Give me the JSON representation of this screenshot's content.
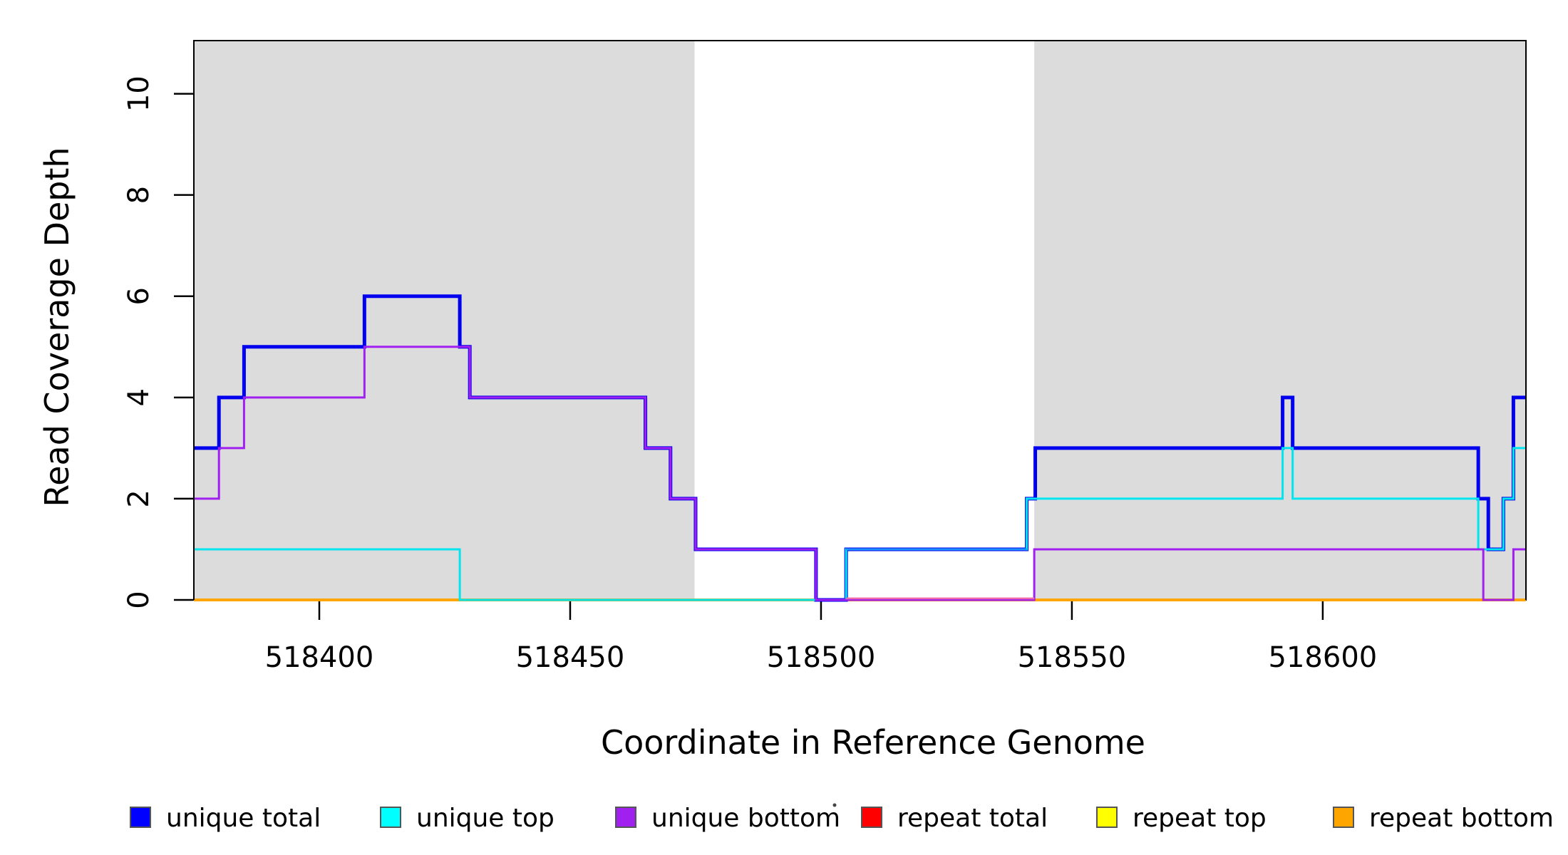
{
  "page": {
    "background": "#FFFFFF"
  },
  "chart_data": {
    "type": "line",
    "subtype": "step-coverage",
    "title": "",
    "xlabel": "Coordinate in Reference Genome",
    "ylabel": "Read Coverage Depth",
    "xlim": [
      518375,
      518640.5
    ],
    "ylim": [
      0,
      11.05
    ],
    "xticks": [
      518400,
      518450,
      518500,
      518550,
      518600
    ],
    "xtick_labels": [
      "518400",
      "518450",
      "518500",
      "518550",
      "518600"
    ],
    "yticks": [
      0,
      2,
      4,
      6,
      8,
      10
    ],
    "ytick_labels": [
      "0",
      "2",
      "4",
      "6",
      "8",
      "10"
    ],
    "grid": false,
    "legend_position": "bottom",
    "shade_color": "#DCDCDC",
    "shaded_regions": [
      {
        "start": 518375,
        "end": 518474.8
      },
      {
        "start": 518542.5,
        "end": 518640.5
      }
    ],
    "series": [
      {
        "name": "unique total",
        "color": "#0000EE",
        "line_width": 5,
        "steps": [
          [
            518375,
            3
          ],
          [
            518380,
            4
          ],
          [
            518385,
            5
          ],
          [
            518409,
            6
          ],
          [
            518428,
            5
          ],
          [
            518430,
            4
          ],
          [
            518465,
            3
          ],
          [
            518470,
            2
          ],
          [
            518475,
            1
          ],
          [
            518499,
            0
          ],
          [
            518505,
            1
          ],
          [
            518541,
            2
          ],
          [
            518542.7,
            3
          ],
          [
            518592,
            4
          ],
          [
            518594,
            3
          ],
          [
            518631,
            2
          ],
          [
            518633,
            1
          ],
          [
            518636,
            2
          ],
          [
            518638,
            4
          ]
        ]
      },
      {
        "name": "unique top",
        "color": "#00E5EE",
        "line_width": 3,
        "steps": [
          [
            518375,
            1
          ],
          [
            518428,
            0
          ],
          [
            518505,
            1
          ],
          [
            518541,
            2
          ],
          [
            518592,
            3
          ],
          [
            518594,
            2
          ],
          [
            518631,
            1
          ],
          [
            518636,
            2
          ],
          [
            518638,
            3
          ]
        ]
      },
      {
        "name": "unique bottom",
        "color": "#A020F0",
        "line_width": 3,
        "steps": [
          [
            518375,
            2
          ],
          [
            518380,
            3
          ],
          [
            518385,
            4
          ],
          [
            518409,
            5
          ],
          [
            518430,
            4
          ],
          [
            518465,
            3
          ],
          [
            518470,
            2
          ],
          [
            518475,
            1
          ],
          [
            518499,
            0
          ],
          [
            518542.5,
            1
          ],
          [
            518632,
            0
          ],
          [
            518638,
            1
          ]
        ]
      },
      {
        "name": "repeat total",
        "color": "#FF0000",
        "line_width": 2.5,
        "steps": [
          [
            518375,
            0
          ]
        ]
      },
      {
        "name": "repeat top",
        "color": "#FFFF00",
        "line_width": 2,
        "steps": [
          [
            518375,
            0
          ]
        ]
      },
      {
        "name": "repeat bottom",
        "color": "#FFA500",
        "line_width": 4,
        "steps": [
          [
            518375,
            0
          ]
        ]
      }
    ],
    "draw_order": [
      "repeat total",
      "repeat top",
      "repeat bottom",
      "unique total",
      "unique top",
      "unique bottom"
    ],
    "overlays": [
      {
        "name": "unique-top-over-unique-total-overlap",
        "span": [
          518505,
          518541
        ],
        "depth": 1,
        "color": "#1E90FF",
        "width": 3
      },
      {
        "name": "repeat-total-over-unique-bottom-overlap",
        "span": [
          518505,
          518542.5
        ],
        "depth": 0.03,
        "color": "#EE6AA7",
        "width": 2.5
      }
    ],
    "legend": [
      {
        "label": "unique total",
        "color": "#0000FF"
      },
      {
        "label": "unique top",
        "color": "#00FFFF"
      },
      {
        "label": "unique bottom",
        "color": "#A020F0"
      },
      {
        "label": "repeat total",
        "color": "#FF0000"
      },
      {
        "label": "repeat top",
        "color": "#FFFF00"
      },
      {
        "label": "repeat bottom",
        "color": "#FFA500"
      }
    ]
  }
}
